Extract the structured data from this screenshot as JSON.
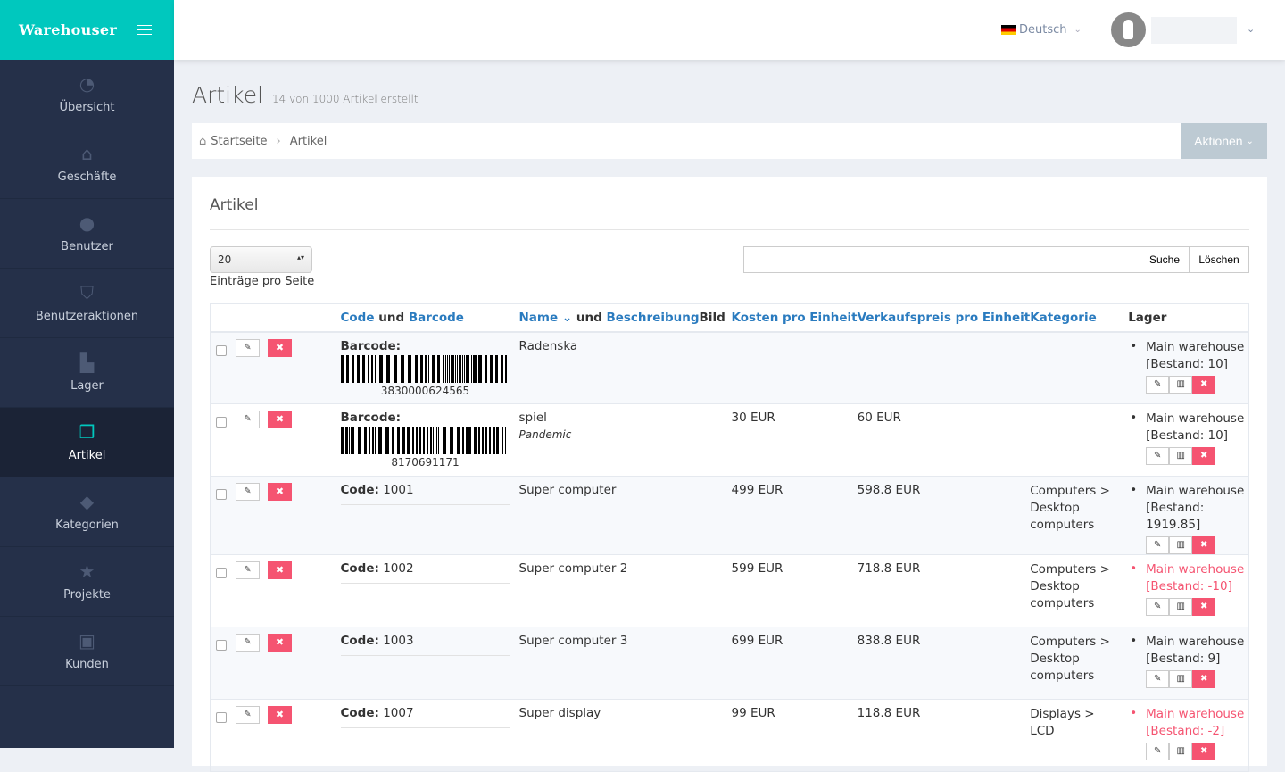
{
  "brand": "Warehouser",
  "sidebar": {
    "items": [
      {
        "label": "Übersicht",
        "icon": "dashboard-icon",
        "glyph": "◔"
      },
      {
        "label": "Geschäfte",
        "icon": "home-icon",
        "glyph": "⌂"
      },
      {
        "label": "Benutzer",
        "icon": "users-icon",
        "glyph": "●"
      },
      {
        "label": "Benutzeraktionen",
        "icon": "shield-icon",
        "glyph": "⛉"
      },
      {
        "label": "Lager",
        "icon": "factory-icon",
        "glyph": "▙"
      },
      {
        "label": "Artikel",
        "icon": "cubes-icon",
        "glyph": "❒"
      },
      {
        "label": "Kategorien",
        "icon": "tags-icon",
        "glyph": "◆"
      },
      {
        "label": "Projekte",
        "icon": "star-icon",
        "glyph": "★"
      },
      {
        "label": "Kunden",
        "icon": "briefcase-icon",
        "glyph": "▣"
      }
    ]
  },
  "header": {
    "language": "Deutsch"
  },
  "page": {
    "title": "Artikel",
    "subtitle": "14 von 1000 Artikel erstellt"
  },
  "breadcrumb": {
    "home": "Startseite",
    "current": "Artikel"
  },
  "actions_label": "Aktionen",
  "card": {
    "title": "Artikel",
    "per_page": "20",
    "per_page_label": "Einträge pro Seite",
    "search_value": "",
    "search_btn": "Suche",
    "clear_btn": "Löschen"
  },
  "table": {
    "headers": {
      "code": "Code",
      "und": "und",
      "barcode": "Barcode",
      "name": "Name",
      "und2": "und",
      "beschreibung": "Beschreibung",
      "bild": "Bild",
      "kosten": "Kosten pro Einheit",
      "verkauf": "Verkaufspreis pro Einheit",
      "kategorie": "Kategorie",
      "lager": "Lager"
    },
    "sorted_by": "Name",
    "rows": [
      {
        "code_label": "Barcode:",
        "code": "",
        "barcode": "3830000624565",
        "name": "Radenska",
        "desc": "",
        "cost": "",
        "price": "",
        "cat": "",
        "wh": "Main warehouse",
        "stock": "[Bestand: 10]",
        "negative": false
      },
      {
        "code_label": "Barcode:",
        "code": "",
        "barcode": "8170691171",
        "name": "spiel",
        "desc": "Pandemic",
        "cost": "30 EUR",
        "price": "60 EUR",
        "cat": "",
        "wh": "Main warehouse",
        "stock": "[Bestand: 10]",
        "negative": false
      },
      {
        "code_label": "Code:",
        "code": "1001",
        "barcode": "",
        "name": "Super computer",
        "desc": "",
        "cost": "499 EUR",
        "price": "598.8 EUR",
        "cat": "Computers > Desktop computers",
        "wh": "Main warehouse",
        "stock": "[Bestand: 1919.85]",
        "negative": false
      },
      {
        "code_label": "Code:",
        "code": "1002",
        "barcode": "",
        "name": "Super computer 2",
        "desc": "",
        "cost": "599 EUR",
        "price": "718.8 EUR",
        "cat": "Computers > Desktop computers",
        "wh": "Main warehouse",
        "stock": "[Bestand: -10]",
        "negative": true
      },
      {
        "code_label": "Code:",
        "code": "1003",
        "barcode": "",
        "name": "Super computer 3",
        "desc": "",
        "cost": "699 EUR",
        "price": "838.8 EUR",
        "cat": "Computers > Desktop computers",
        "wh": "Main warehouse",
        "stock": "[Bestand: 9]",
        "negative": false
      },
      {
        "code_label": "Code:",
        "code": "1007",
        "barcode": "",
        "name": "Super display",
        "desc": "",
        "cost": "99 EUR",
        "price": "118.8 EUR",
        "cat": "Displays > LCD",
        "wh": "Main warehouse",
        "stock": "[Bestand: -2]",
        "negative": true
      }
    ]
  },
  "colors": {
    "brand": "#00c8be",
    "sidebar": "#253049",
    "danger": "#f55471",
    "link": "#2a7bbf"
  }
}
